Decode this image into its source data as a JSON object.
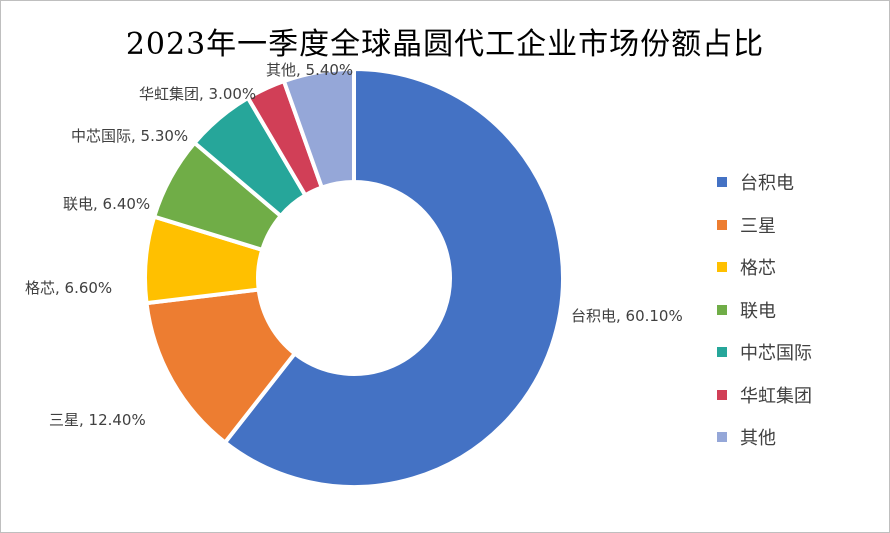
{
  "chart_data": {
    "type": "pie",
    "variant": "donut",
    "title": "2023年一季度全球晶圆代工企业市场份额占比",
    "slices": [
      {
        "label": "台积电",
        "value": 60.1,
        "value_text": "60.10%",
        "color": "#4472C4"
      },
      {
        "label": "三星",
        "value": 12.4,
        "value_text": "12.40%",
        "color": "#ED7D31"
      },
      {
        "label": "格芯",
        "value": 6.6,
        "value_text": "6.60%",
        "color": "#FFC000"
      },
      {
        "label": "联电",
        "value": 6.4,
        "value_text": "6.40%",
        "color": "#70AD47"
      },
      {
        "label": "中芯国际",
        "value": 5.3,
        "value_text": "5.30%",
        "color": "#26A69A"
      },
      {
        "label": "华虹集团",
        "value": 3.0,
        "value_text": "3.00%",
        "color": "#D13F57"
      },
      {
        "label": "其他",
        "value": 5.4,
        "value_text": "5.40%",
        "color": "#95A7D8"
      }
    ],
    "legend_placement": "right"
  }
}
